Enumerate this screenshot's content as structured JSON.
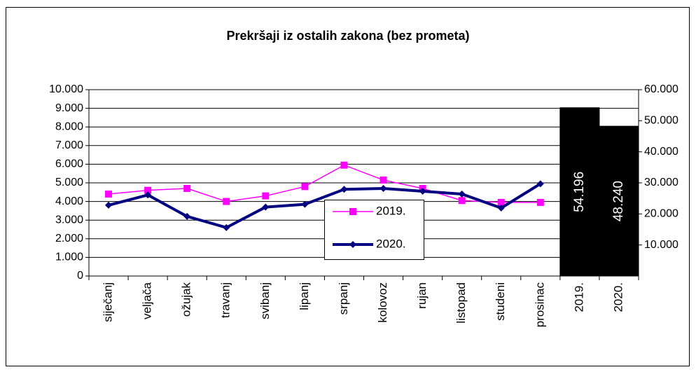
{
  "chart_data": {
    "type": "line",
    "title": "Prekršaji iz ostalih zakona (bez prometa)",
    "categories": [
      "siječanj",
      "veljača",
      "ožujak",
      "travanj",
      "svibanj",
      "lipanj",
      "srpanj",
      "kolovoz",
      "rujan",
      "listopad",
      "studeni",
      "prosinac",
      "2019.",
      "2020."
    ],
    "series": [
      {
        "name": "2019.",
        "color": "#ff00ff",
        "values": [
          4400,
          4600,
          4700,
          4000,
          4300,
          4800,
          5950,
          5150,
          4700,
          4050,
          3950,
          3950,
          null,
          null
        ]
      },
      {
        "name": "2020.",
        "color": "#000080",
        "values": [
          3800,
          4350,
          3200,
          2600,
          3700,
          3850,
          4650,
          4700,
          4550,
          4400,
          3650,
          4950,
          null,
          null
        ]
      },
      {
        "type": "bar",
        "axis": "y2",
        "colors": [
          "#ff00ff",
          "#000066"
        ],
        "values": [
          null,
          null,
          null,
          null,
          null,
          null,
          null,
          null,
          null,
          null,
          null,
          null,
          54196,
          48240
        ],
        "value_labels": [
          null,
          null,
          null,
          null,
          null,
          null,
          null,
          null,
          null,
          null,
          null,
          null,
          "54.196",
          "48.240"
        ]
      }
    ],
    "ylim": [
      0,
      10000
    ],
    "yticks": [
      0,
      {
        "value": 1000,
        "label": "1.000"
      },
      {
        "value": 2000,
        "label": "2.000"
      },
      {
        "value": 3000,
        "label": "3.000"
      },
      {
        "value": 4000,
        "label": "4.000"
      },
      {
        "value": 5000,
        "label": "5.000"
      },
      {
        "value": 6000,
        "label": "6.000"
      },
      {
        "value": 7000,
        "label": "7.000"
      },
      {
        "value": 8000,
        "label": "8.000"
      },
      {
        "value": 9000,
        "label": "9.000"
      },
      {
        "value": 10000,
        "label": "10.000"
      }
    ],
    "y2lim": [
      0,
      60000
    ],
    "y2ticks": [
      {
        "value": 10000,
        "label": "10.000"
      },
      {
        "value": 20000,
        "label": "20.000"
      },
      {
        "value": 30000,
        "label": "30.000"
      },
      {
        "value": 40000,
        "label": "40.000"
      },
      {
        "value": 50000,
        "label": "50.000"
      },
      {
        "value": 60000,
        "label": "60.000"
      }
    ],
    "grid": true,
    "legend": "center"
  }
}
